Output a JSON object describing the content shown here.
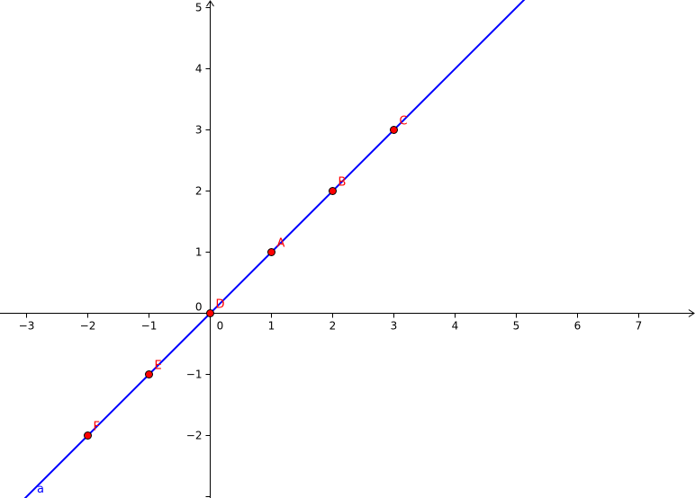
{
  "chart_data": {
    "type": "line",
    "title": "",
    "xlabel": "",
    "ylabel": "",
    "xlim": [
      -3.4,
      7.9
    ],
    "ylim": [
      -3.2,
      5.45
    ],
    "grid": false,
    "x_ticks": [
      -3,
      -2,
      -1,
      0,
      1,
      2,
      3,
      4,
      5,
      6,
      7
    ],
    "x_tick_labels": [
      "−3",
      "−2",
      "−1",
      "0",
      "1",
      "2",
      "3",
      "4",
      "5",
      "6",
      "7"
    ],
    "y_ticks": [
      -2,
      -1,
      1,
      2,
      3,
      4,
      5
    ],
    "y_tick_labels": [
      "−2",
      "−1",
      "1",
      "2",
      "3",
      "4",
      "5"
    ],
    "origin_label": "0",
    "series": [
      {
        "name": "a",
        "equation_slope": 1,
        "equation_intercept": 0,
        "x": [
          -3.4,
          5.45
        ],
        "y": [
          -3.4,
          5.45
        ]
      }
    ],
    "points": [
      {
        "label": "A",
        "x": 1,
        "y": 1
      },
      {
        "label": "B",
        "x": 2,
        "y": 2
      },
      {
        "label": "C",
        "x": 3,
        "y": 3
      },
      {
        "label": "D",
        "x": 0,
        "y": 0
      },
      {
        "label": "E",
        "x": -1,
        "y": -1
      },
      {
        "label": "F",
        "x": -2,
        "y": -2
      }
    ]
  },
  "colors": {
    "line": "#0000ff",
    "point_fill": "#ff0000",
    "point_stroke": "#000000",
    "point_label": "#ff0000",
    "line_label": "#0000ff",
    "axis": "#000000"
  }
}
